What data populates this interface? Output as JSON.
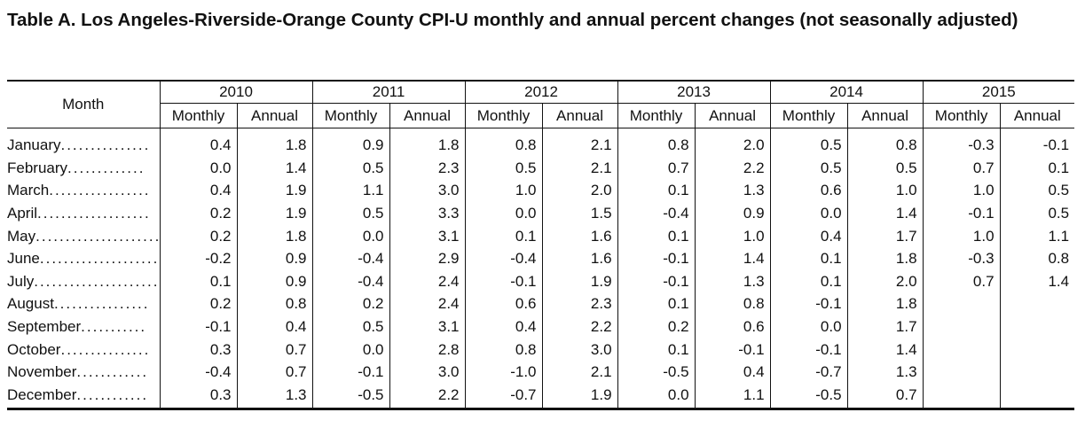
{
  "title": "Table A. Los Angeles-Riverside-Orange County CPI-U monthly and annual percent changes (not seasonally adjusted)",
  "month_header": "Month",
  "sub_headers": {
    "monthly": "Monthly",
    "annual": "Annual"
  },
  "years": [
    "2010",
    "2011",
    "2012",
    "2013",
    "2014",
    "2015"
  ],
  "rows": [
    {
      "month": "January",
      "dots": "...............",
      "values": [
        "0.4",
        "1.8",
        "0.9",
        "1.8",
        "0.8",
        "2.1",
        "0.8",
        "2.0",
        "0.5",
        "0.8",
        "-0.3",
        "-0.1"
      ]
    },
    {
      "month": "February",
      "dots": ".............",
      "values": [
        "0.0",
        "1.4",
        "0.5",
        "2.3",
        "0.5",
        "2.1",
        "0.7",
        "2.2",
        "0.5",
        "0.5",
        "0.7",
        "0.1"
      ]
    },
    {
      "month": "March",
      "dots": ".................",
      "values": [
        "0.4",
        "1.9",
        "1.1",
        "3.0",
        "1.0",
        "2.0",
        "0.1",
        "1.3",
        "0.6",
        "1.0",
        "1.0",
        "0.5"
      ]
    },
    {
      "month": "April",
      "dots": "...................",
      "values": [
        "0.2",
        "1.9",
        "0.5",
        "3.3",
        "0.0",
        "1.5",
        "-0.4",
        "0.9",
        "0.0",
        "1.4",
        "-0.1",
        "0.5"
      ]
    },
    {
      "month": "May",
      "dots": "......................",
      "values": [
        "0.2",
        "1.8",
        "0.0",
        "3.1",
        "0.1",
        "1.6",
        "0.1",
        "1.0",
        "0.4",
        "1.7",
        "1.0",
        "1.1"
      ]
    },
    {
      "month": "June",
      "dots": "....................",
      "values": [
        "-0.2",
        "0.9",
        "-0.4",
        "2.9",
        "-0.4",
        "1.6",
        "-0.1",
        "1.4",
        "0.1",
        "1.8",
        "-0.3",
        "0.8"
      ]
    },
    {
      "month": "July",
      "dots": ".....................",
      "values": [
        "0.1",
        "0.9",
        "-0.4",
        "2.4",
        "-0.1",
        "1.9",
        "-0.1",
        "1.3",
        "0.1",
        "2.0",
        "0.7",
        "1.4"
      ]
    },
    {
      "month": "August",
      "dots": "................",
      "values": [
        "0.2",
        "0.8",
        "0.2",
        "2.4",
        "0.6",
        "2.3",
        "0.1",
        "0.8",
        "-0.1",
        "1.8",
        "",
        ""
      ]
    },
    {
      "month": "September",
      "dots": "...........",
      "values": [
        "-0.1",
        "0.4",
        "0.5",
        "3.1",
        "0.4",
        "2.2",
        "0.2",
        "0.6",
        "0.0",
        "1.7",
        "",
        ""
      ]
    },
    {
      "month": "October",
      "dots": "...............",
      "values": [
        "0.3",
        "0.7",
        "0.0",
        "2.8",
        "0.8",
        "3.0",
        "0.1",
        "-0.1",
        "-0.1",
        "1.4",
        "",
        ""
      ]
    },
    {
      "month": "November",
      "dots": "............",
      "values": [
        "-0.4",
        "0.7",
        "-0.1",
        "3.0",
        "-1.0",
        "2.1",
        "-0.5",
        "0.4",
        "-0.7",
        "1.3",
        "",
        ""
      ]
    },
    {
      "month": "December",
      "dots": "............",
      "values": [
        "0.3",
        "1.3",
        "-0.5",
        "2.2",
        "-0.7",
        "1.9",
        "0.0",
        "1.1",
        "-0.5",
        "0.7",
        "",
        ""
      ]
    }
  ]
}
